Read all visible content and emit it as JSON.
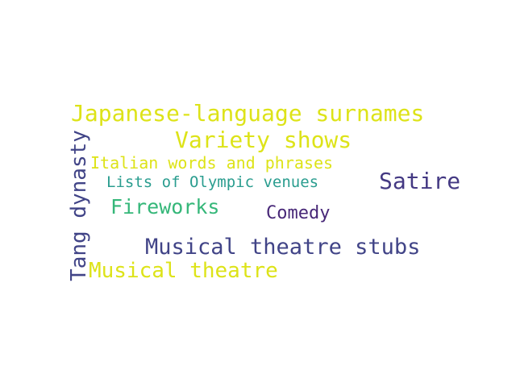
{
  "words": [
    {
      "text": "Japanese-language surnames",
      "color": "#dde318"
    },
    {
      "text": "Variety shows",
      "color": "#dde318"
    },
    {
      "text": "Italian words and phrases",
      "color": "#dde318"
    },
    {
      "text": "Lists of Olympic venues",
      "color": "#2a9d8f"
    },
    {
      "text": "Satire",
      "color": "#443983"
    },
    {
      "text": "Fireworks",
      "color": "#35b779"
    },
    {
      "text": "Comedy",
      "color": "#482878"
    },
    {
      "text": "Musical theatre stubs",
      "color": "#414487"
    },
    {
      "text": "Musical theatre",
      "color": "#dde318"
    },
    {
      "text": "Tang dynasty",
      "color": "#414487"
    }
  ]
}
